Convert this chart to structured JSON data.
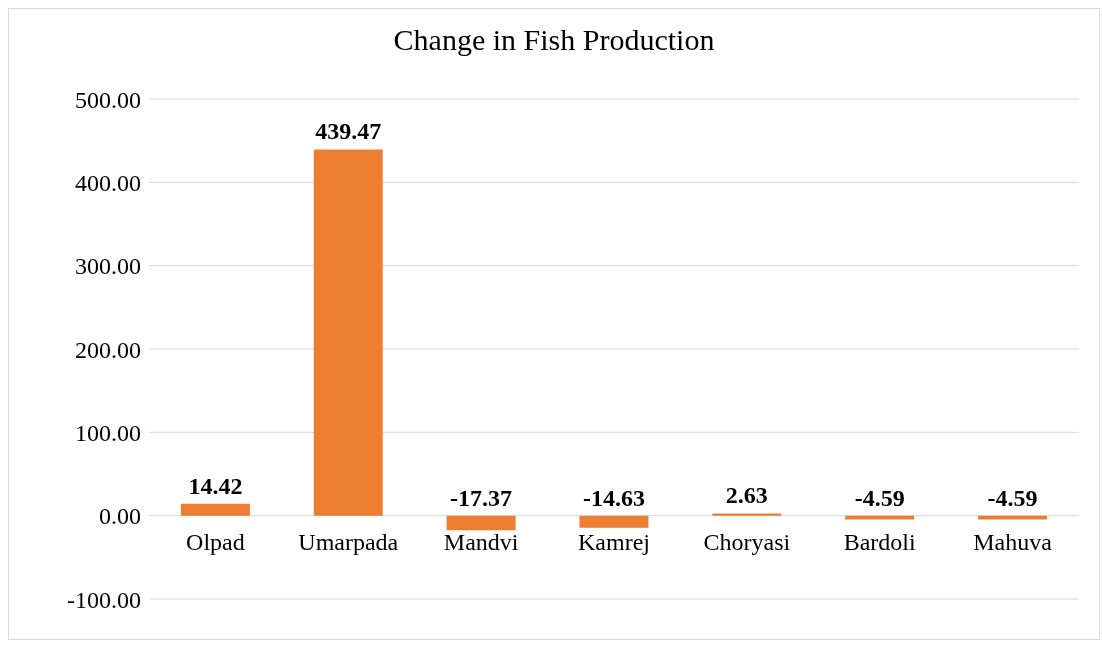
{
  "chart_data": {
    "type": "bar",
    "title": "Change in Fish Production",
    "categories": [
      "Olpad",
      "Umarpada",
      "Mandvi",
      "Kamrej",
      "Choryasi",
      "Bardoli",
      "Mahuva"
    ],
    "values": [
      14.42,
      439.47,
      -17.37,
      -14.63,
      2.63,
      -4.59,
      -4.59
    ],
    "color": "#ed7d31",
    "ylim": [
      -100,
      500
    ],
    "yticks": [
      {
        "value": -100,
        "label": "-100.00"
      },
      {
        "value": 0,
        "label": "0.00"
      },
      {
        "value": 100,
        "label": "100.00"
      },
      {
        "value": 200,
        "label": "200.00"
      },
      {
        "value": 300,
        "label": "300.00"
      },
      {
        "value": 400,
        "label": "400.00"
      },
      {
        "value": 500,
        "label": "500.00"
      }
    ],
    "grid": "y",
    "data_labels": true,
    "legend": false
  }
}
